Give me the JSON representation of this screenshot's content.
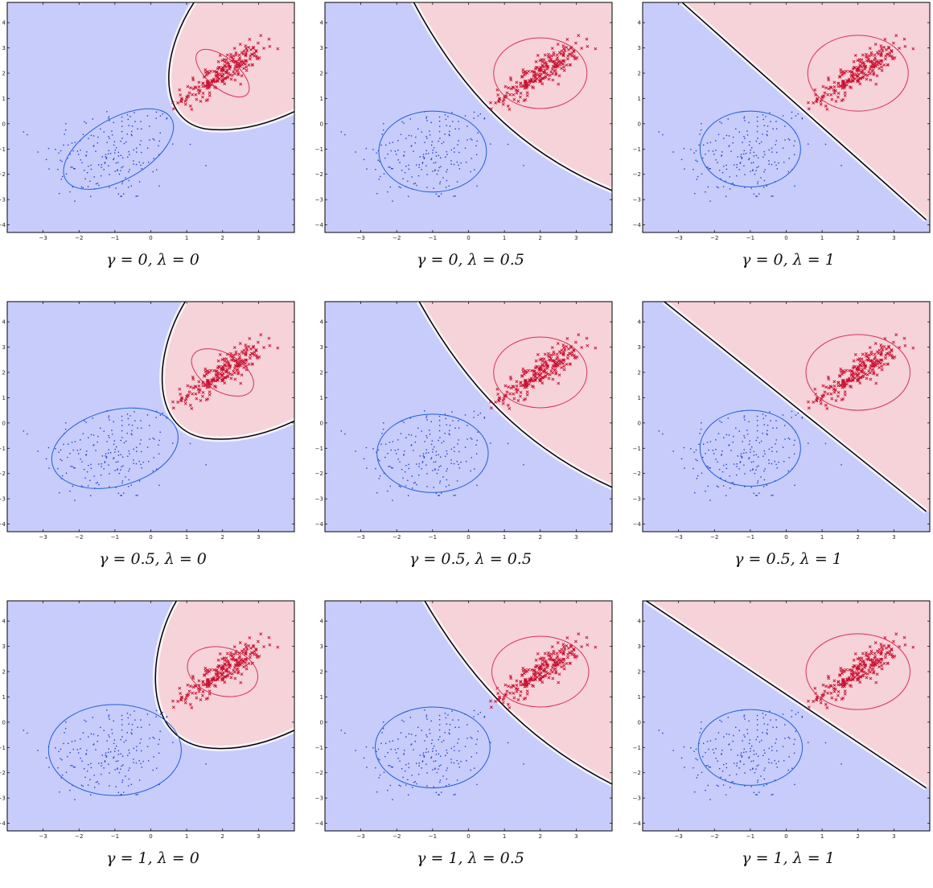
{
  "figure": {
    "colors": {
      "class_a_region": "#c8ccfb",
      "class_b_region": "#f6d2d9",
      "class_a_points": "#1f3fc9",
      "class_b_points": "#c8102e",
      "class_a_ellipse": "#1f5fd8",
      "class_b_ellipse": "#d6335a",
      "boundary": "#000000"
    }
  },
  "chart_data": [
    {
      "type": "scatter",
      "caption": "γ = 0, λ = 0",
      "gamma": 0,
      "lambda": 0,
      "xlim": [
        -4,
        4
      ],
      "ylim": [
        -4.3,
        4.8
      ],
      "xticks": [
        -3,
        -2,
        -1,
        0,
        1,
        2,
        3
      ],
      "yticks": [
        -4,
        -3,
        -2,
        -1,
        0,
        1,
        2,
        3,
        4
      ],
      "boundary": "quadratic",
      "ellipse_a": {
        "cx": -0.9,
        "cy": -1.0,
        "rx": 1.7,
        "ry": 1.2,
        "angle": -30
      },
      "ellipse_b": {
        "cx": 2.0,
        "cy": 2.0,
        "rx": 0.9,
        "ry": 0.6,
        "angle": 40
      },
      "series": [
        {
          "type": "dots",
          "center": [
            -1.2,
            -1.2
          ]
        },
        {
          "type": "crosses",
          "center": [
            2,
            2
          ]
        }
      ]
    },
    {
      "type": "scatter",
      "caption": "γ = 0, λ = 0.5",
      "gamma": 0,
      "lambda": 0.5,
      "xlim": [
        -4,
        4
      ],
      "ylim": [
        -4.3,
        4.8
      ],
      "xticks": [
        -3,
        -2,
        -1,
        0,
        1,
        2,
        3
      ],
      "yticks": [
        -4,
        -3,
        -2,
        -1,
        0,
        1,
        2,
        3,
        4
      ],
      "boundary": "curved",
      "ellipse_a": {
        "cx": -1.0,
        "cy": -1.1,
        "rx": 1.5,
        "ry": 1.6,
        "angle": 0
      },
      "ellipse_b": {
        "cx": 2.0,
        "cy": 2.0,
        "rx": 1.3,
        "ry": 1.4,
        "angle": 0
      },
      "series": [
        {
          "type": "dots",
          "center": [
            -1.2,
            -1.2
          ]
        },
        {
          "type": "crosses",
          "center": [
            2,
            2
          ]
        }
      ]
    },
    {
      "type": "scatter",
      "caption": "γ = 0, λ = 1",
      "gamma": 0,
      "lambda": 1,
      "xlim": [
        -4,
        4
      ],
      "ylim": [
        -4.3,
        4.8
      ],
      "xticks": [
        -3,
        -2,
        -1,
        0,
        1,
        2,
        3
      ],
      "yticks": [
        -4,
        -3,
        -2,
        -1,
        0,
        1,
        2,
        3,
        4
      ],
      "boundary": "linear",
      "ellipse_a": {
        "cx": -1.0,
        "cy": -1.0,
        "rx": 1.4,
        "ry": 1.5,
        "angle": 0
      },
      "ellipse_b": {
        "cx": 2.0,
        "cy": 2.0,
        "rx": 1.4,
        "ry": 1.5,
        "angle": 0
      },
      "series": [
        {
          "type": "dots",
          "center": [
            -1.2,
            -1.2
          ]
        },
        {
          "type": "crosses",
          "center": [
            2,
            2
          ]
        }
      ]
    },
    {
      "type": "scatter",
      "caption": "γ = 0.5, λ = 0",
      "gamma": 0.5,
      "lambda": 0,
      "xlim": [
        -4,
        4
      ],
      "ylim": [
        -4.3,
        4.8
      ],
      "xticks": [
        -3,
        -2,
        -1,
        0,
        1,
        2,
        3
      ],
      "yticks": [
        -4,
        -3,
        -2,
        -1,
        0,
        1,
        2,
        3,
        4
      ],
      "boundary": "quadratic",
      "ellipse_a": {
        "cx": -1.0,
        "cy": -1.0,
        "rx": 1.8,
        "ry": 1.5,
        "angle": -15
      },
      "ellipse_b": {
        "cx": 2.0,
        "cy": 2.0,
        "rx": 0.95,
        "ry": 0.75,
        "angle": 30
      },
      "series": [
        {
          "type": "dots",
          "center": [
            -1.2,
            -1.2
          ]
        },
        {
          "type": "crosses",
          "center": [
            2,
            2
          ]
        }
      ]
    },
    {
      "type": "scatter",
      "caption": "γ = 0.5, λ = 0.5",
      "gamma": 0.5,
      "lambda": 0.5,
      "xlim": [
        -4,
        4
      ],
      "ylim": [
        -4.3,
        4.8
      ],
      "xticks": [
        -3,
        -2,
        -1,
        0,
        1,
        2,
        3
      ],
      "yticks": [
        -4,
        -3,
        -2,
        -1,
        0,
        1,
        2,
        3,
        4
      ],
      "boundary": "curved",
      "ellipse_a": {
        "cx": -1.0,
        "cy": -1.2,
        "rx": 1.55,
        "ry": 1.55,
        "angle": 0
      },
      "ellipse_b": {
        "cx": 2.0,
        "cy": 2.0,
        "rx": 1.3,
        "ry": 1.4,
        "angle": 0
      },
      "series": [
        {
          "type": "dots",
          "center": [
            -1.2,
            -1.2
          ]
        },
        {
          "type": "crosses",
          "center": [
            2,
            2
          ]
        }
      ]
    },
    {
      "type": "scatter",
      "caption": "γ = 0.5, λ = 1",
      "gamma": 0.5,
      "lambda": 1,
      "xlim": [
        -4,
        4
      ],
      "ylim": [
        -4.3,
        4.8
      ],
      "xticks": [
        -3,
        -2,
        -1,
        0,
        1,
        2,
        3
      ],
      "yticks": [
        -4,
        -3,
        -2,
        -1,
        0,
        1,
        2,
        3,
        4
      ],
      "boundary": "linear",
      "ellipse_a": {
        "cx": -1.0,
        "cy": -1.0,
        "rx": 1.4,
        "ry": 1.5,
        "angle": 0
      },
      "ellipse_b": {
        "cx": 2.0,
        "cy": 2.0,
        "rx": 1.45,
        "ry": 1.5,
        "angle": 0
      },
      "series": [
        {
          "type": "dots",
          "center": [
            -1.2,
            -1.2
          ]
        },
        {
          "type": "crosses",
          "center": [
            2,
            2
          ]
        }
      ]
    },
    {
      "type": "scatter",
      "caption": "γ = 1, λ = 0",
      "gamma": 1,
      "lambda": 0,
      "xlim": [
        -4,
        4
      ],
      "ylim": [
        -4.3,
        4.8
      ],
      "xticks": [
        -3,
        -2,
        -1,
        0,
        1,
        2,
        3
      ],
      "yticks": [
        -4,
        -3,
        -2,
        -1,
        0,
        1,
        2,
        3,
        4
      ],
      "boundary": "quadratic",
      "ellipse_a": {
        "cx": -1.0,
        "cy": -1.1,
        "rx": 1.85,
        "ry": 1.8,
        "angle": 0
      },
      "ellipse_b": {
        "cx": 2.0,
        "cy": 2.0,
        "rx": 1.0,
        "ry": 0.95,
        "angle": 15
      },
      "series": [
        {
          "type": "dots",
          "center": [
            -1.2,
            -1.2
          ]
        },
        {
          "type": "crosses",
          "center": [
            2,
            2
          ]
        }
      ]
    },
    {
      "type": "scatter",
      "caption": "γ = 1, λ = 0.5",
      "gamma": 1,
      "lambda": 0.5,
      "xlim": [
        -4,
        4
      ],
      "ylim": [
        -4.3,
        4.8
      ],
      "xticks": [
        -3,
        -2,
        -1,
        0,
        1,
        2,
        3
      ],
      "yticks": [
        -4,
        -3,
        -2,
        -1,
        0,
        1,
        2,
        3,
        4
      ],
      "boundary": "curved",
      "ellipse_a": {
        "cx": -1.0,
        "cy": -1.0,
        "rx": 1.6,
        "ry": 1.6,
        "angle": 0
      },
      "ellipse_b": {
        "cx": 2.0,
        "cy": 2.0,
        "rx": 1.35,
        "ry": 1.4,
        "angle": 0
      },
      "series": [
        {
          "type": "dots",
          "center": [
            -1.2,
            -1.2
          ]
        },
        {
          "type": "crosses",
          "center": [
            2,
            2
          ]
        }
      ]
    },
    {
      "type": "scatter",
      "caption": "γ = 1, λ = 1",
      "gamma": 1,
      "lambda": 1,
      "xlim": [
        -4,
        4
      ],
      "ylim": [
        -4.3,
        4.8
      ],
      "xticks": [
        -3,
        -2,
        -1,
        0,
        1,
        2,
        3
      ],
      "yticks": [
        -4,
        -3,
        -2,
        -1,
        0,
        1,
        2,
        3,
        4
      ],
      "boundary": "linear",
      "ellipse_a": {
        "cx": -1.0,
        "cy": -1.0,
        "rx": 1.45,
        "ry": 1.5,
        "angle": 0
      },
      "ellipse_b": {
        "cx": 2.0,
        "cy": 2.0,
        "rx": 1.45,
        "ry": 1.5,
        "angle": 0
      },
      "series": [
        {
          "type": "dots",
          "center": [
            -1.2,
            -1.2
          ]
        },
        {
          "type": "crosses",
          "center": [
            2,
            2
          ]
        }
      ]
    }
  ]
}
